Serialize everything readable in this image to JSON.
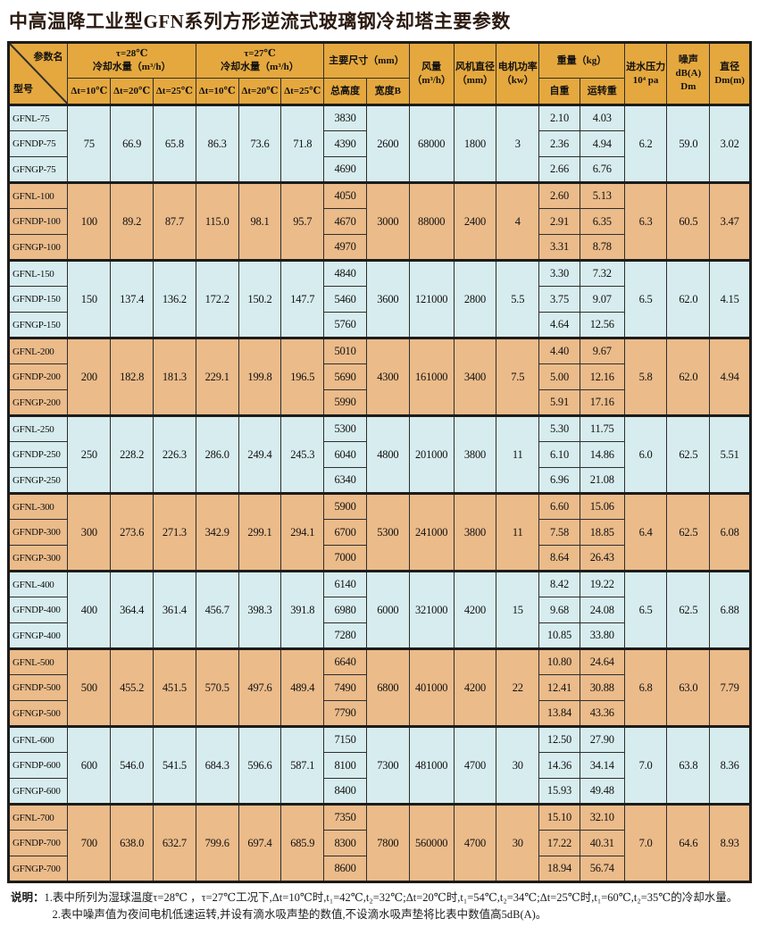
{
  "title": "中高温降工业型GFN系列方形逆流式玻璃钢冷却塔主要参数",
  "colors": {
    "header_bg": "#e5a83e",
    "row_blue": "#d7ecee",
    "row_tan": "#ebbb8a",
    "border": "#2e2e2e"
  },
  "header": {
    "corner": {
      "param": "参数名",
      "model": "型号"
    },
    "flow28": "τ=28℃\n冷却水量（m³/h）",
    "flow27": "τ=27℃\n冷却水量（m³/h）",
    "delta_subs": [
      "Δt=10℃",
      "Δt=20℃",
      "Δt=25℃"
    ],
    "dims": "主要尺寸（mm）",
    "dims_subs": [
      "总高度",
      "宽度B"
    ],
    "air_flow": "风量\n（m³/h）",
    "fan_diameter": "风机直径\n（mm）",
    "motor_power": "电机功率\n（kw）",
    "weight": "重量（kg）",
    "weight_subs": [
      "自重",
      "运转重"
    ],
    "water_pressure": "进水压力\n10⁴ pa",
    "noise": "噪声\ndB(A) Dm",
    "diameter": "直径\nDm(m)"
  },
  "groups": [
    {
      "models": [
        "GFNL-75",
        "GFNDP-75",
        "GFNGP-75"
      ],
      "flow28": [
        "75",
        "66.9",
        "65.8"
      ],
      "flow27": [
        "86.3",
        "73.6",
        "71.8"
      ],
      "heights": [
        "3830",
        "4390",
        "4690"
      ],
      "width_b": "2600",
      "air_flow": "68000",
      "fan_diameter": "1800",
      "motor_power": "3",
      "self_weight": [
        "2.10",
        "2.36",
        "2.66"
      ],
      "run_weight": [
        "4.03",
        "4.94",
        "6.76"
      ],
      "water_pressure": "6.2",
      "noise": "59.0",
      "diameter": "3.02"
    },
    {
      "models": [
        "GFNL-100",
        "GFNDP-100",
        "GFNGP-100"
      ],
      "flow28": [
        "100",
        "89.2",
        "87.7"
      ],
      "flow27": [
        "115.0",
        "98.1",
        "95.7"
      ],
      "heights": [
        "4050",
        "4670",
        "4970"
      ],
      "width_b": "3000",
      "air_flow": "88000",
      "fan_diameter": "2400",
      "motor_power": "4",
      "self_weight": [
        "2.60",
        "2.91",
        "3.31"
      ],
      "run_weight": [
        "5.13",
        "6.35",
        "8.78"
      ],
      "water_pressure": "6.3",
      "noise": "60.5",
      "diameter": "3.47"
    },
    {
      "models": [
        "GFNL-150",
        "GFNDP-150",
        "GFNGP-150"
      ],
      "flow28": [
        "150",
        "137.4",
        "136.2"
      ],
      "flow27": [
        "172.2",
        "150.2",
        "147.7"
      ],
      "heights": [
        "4840",
        "5460",
        "5760"
      ],
      "width_b": "3600",
      "air_flow": "121000",
      "fan_diameter": "2800",
      "motor_power": "5.5",
      "self_weight": [
        "3.30",
        "3.75",
        "4.64"
      ],
      "run_weight": [
        "7.32",
        "9.07",
        "12.56"
      ],
      "water_pressure": "6.5",
      "noise": "62.0",
      "diameter": "4.15"
    },
    {
      "models": [
        "GFNL-200",
        "GFNDP-200",
        "GFNGP-200"
      ],
      "flow28": [
        "200",
        "182.8",
        "181.3"
      ],
      "flow27": [
        "229.1",
        "199.8",
        "196.5"
      ],
      "heights": [
        "5010",
        "5690",
        "5990"
      ],
      "width_b": "4300",
      "air_flow": "161000",
      "fan_diameter": "3400",
      "motor_power": "7.5",
      "self_weight": [
        "4.40",
        "5.00",
        "5.91"
      ],
      "run_weight": [
        "9.67",
        "12.16",
        "17.16"
      ],
      "water_pressure": "5.8",
      "noise": "62.0",
      "diameter": "4.94"
    },
    {
      "models": [
        "GFNL-250",
        "GFNDP-250",
        "GFNGP-250"
      ],
      "flow28": [
        "250",
        "228.2",
        "226.3"
      ],
      "flow27": [
        "286.0",
        "249.4",
        "245.3"
      ],
      "heights": [
        "5300",
        "6040",
        "6340"
      ],
      "width_b": "4800",
      "air_flow": "201000",
      "fan_diameter": "3800",
      "motor_power": "11",
      "self_weight": [
        "5.30",
        "6.10",
        "6.96"
      ],
      "run_weight": [
        "11.75",
        "14.86",
        "21.08"
      ],
      "water_pressure": "6.0",
      "noise": "62.5",
      "diameter": "5.51"
    },
    {
      "models": [
        "GFNL-300",
        "GFNDP-300",
        "GFNGP-300"
      ],
      "flow28": [
        "300",
        "273.6",
        "271.3"
      ],
      "flow27": [
        "342.9",
        "299.1",
        "294.1"
      ],
      "heights": [
        "5900",
        "6700",
        "7000"
      ],
      "width_b": "5300",
      "air_flow": "241000",
      "fan_diameter": "3800",
      "motor_power": "11",
      "self_weight": [
        "6.60",
        "7.58",
        "8.64"
      ],
      "run_weight": [
        "15.06",
        "18.85",
        "26.43"
      ],
      "water_pressure": "6.4",
      "noise": "62.5",
      "diameter": "6.08"
    },
    {
      "models": [
        "GFNL-400",
        "GFNDP-400",
        "GFNGP-400"
      ],
      "flow28": [
        "400",
        "364.4",
        "361.4"
      ],
      "flow27": [
        "456.7",
        "398.3",
        "391.8"
      ],
      "heights": [
        "6140",
        "6980",
        "7280"
      ],
      "width_b": "6000",
      "air_flow": "321000",
      "fan_diameter": "4200",
      "motor_power": "15",
      "self_weight": [
        "8.42",
        "9.68",
        "10.85"
      ],
      "run_weight": [
        "19.22",
        "24.08",
        "33.80"
      ],
      "water_pressure": "6.5",
      "noise": "62.5",
      "diameter": "6.88"
    },
    {
      "models": [
        "GFNL-500",
        "GFNDP-500",
        "GFNGP-500"
      ],
      "flow28": [
        "500",
        "455.2",
        "451.5"
      ],
      "flow27": [
        "570.5",
        "497.6",
        "489.4"
      ],
      "heights": [
        "6640",
        "7490",
        "7790"
      ],
      "width_b": "6800",
      "air_flow": "401000",
      "fan_diameter": "4200",
      "motor_power": "22",
      "self_weight": [
        "10.80",
        "12.41",
        "13.84"
      ],
      "run_weight": [
        "24.64",
        "30.88",
        "43.36"
      ],
      "water_pressure": "6.8",
      "noise": "63.0",
      "diameter": "7.79"
    },
    {
      "models": [
        "GFNL-600",
        "GFNDP-600",
        "GFNGP-600"
      ],
      "flow28": [
        "600",
        "546.0",
        "541.5"
      ],
      "flow27": [
        "684.3",
        "596.6",
        "587.1"
      ],
      "heights": [
        "7150",
        "8100",
        "8400"
      ],
      "width_b": "7300",
      "air_flow": "481000",
      "fan_diameter": "4700",
      "motor_power": "30",
      "self_weight": [
        "12.50",
        "14.36",
        "15.93"
      ],
      "run_weight": [
        "27.90",
        "34.14",
        "49.48"
      ],
      "water_pressure": "7.0",
      "noise": "63.8",
      "diameter": "8.36"
    },
    {
      "models": [
        "GFNL-700",
        "GFNDP-700",
        "GFNGP-700"
      ],
      "flow28": [
        "700",
        "638.0",
        "632.7"
      ],
      "flow27": [
        "799.6",
        "697.4",
        "685.9"
      ],
      "heights": [
        "7350",
        "8300",
        "8600"
      ],
      "width_b": "7800",
      "air_flow": "560000",
      "fan_diameter": "4700",
      "motor_power": "30",
      "self_weight": [
        "15.10",
        "17.22",
        "18.94"
      ],
      "run_weight": [
        "32.10",
        "40.31",
        "56.74"
      ],
      "water_pressure": "7.0",
      "noise": "64.6",
      "diameter": "8.93"
    }
  ],
  "notes": {
    "label": "说明：",
    "items": [
      "1.表中所列为湿球温度τ=28℃ ，τ=27℃工况下,Δt=10℃时,t₁=42℃,t₂=32℃;Δt=20℃时,t₁=54℃,t₂=34℃;Δt=25℃时,t₁=60℃,t₂=35℃的冷却水量。",
      "2.表中噪声值为夜间电机低速运转,并设有滴水吸声垫的数值,不设滴水吸声垫将比表中数值高5dB(A)。"
    ]
  }
}
